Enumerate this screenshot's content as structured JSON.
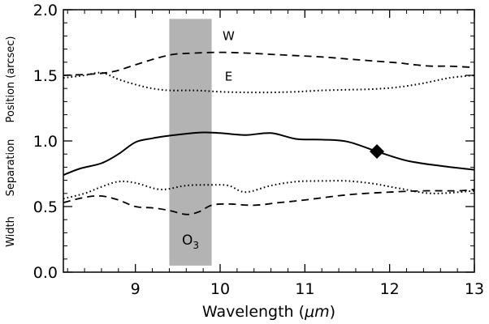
{
  "chart_data": {
    "type": "line",
    "xlabel_prefix": "Wavelength (",
    "xlabel_unit": "μm",
    "xlabel_suffix": ")",
    "ylabels": [
      "Position (arcsec)",
      "Separation",
      "Width"
    ],
    "xlim": [
      8.15,
      13.0
    ],
    "ylim": [
      0.0,
      2.0
    ],
    "x_ticks": [
      9,
      10,
      11,
      12,
      13
    ],
    "x_tick_labels": [
      "9",
      "10",
      "11",
      "12",
      "13"
    ],
    "y_ticks": [
      0.0,
      0.5,
      1.0,
      1.5,
      2.0
    ],
    "y_tick_labels": [
      "0.0",
      "0.5",
      "1.0",
      "1.5",
      "2.0"
    ],
    "grid": false,
    "band": {
      "x0": 9.4,
      "x1": 9.9,
      "y0": 0.05,
      "y1": 1.93,
      "color": "#b3b3b3",
      "label_main": "O",
      "label_sub": "3"
    },
    "series": [
      {
        "name": "W",
        "style": "dashed",
        "x": [
          8.15,
          8.5,
          8.75,
          9.0,
          9.25,
          9.45,
          9.7,
          10.0,
          10.3,
          10.6,
          10.9,
          11.2,
          11.5,
          11.8,
          12.1,
          12.3,
          12.5,
          12.7,
          13.0
        ],
        "y": [
          1.5,
          1.51,
          1.53,
          1.58,
          1.63,
          1.66,
          1.67,
          1.675,
          1.67,
          1.66,
          1.65,
          1.64,
          1.625,
          1.61,
          1.595,
          1.58,
          1.57,
          1.57,
          1.56
        ]
      },
      {
        "name": "E",
        "style": "dotted",
        "x": [
          8.15,
          8.4,
          8.6,
          8.8,
          9.0,
          9.2,
          9.4,
          9.7,
          10.0,
          10.3,
          10.6,
          10.9,
          11.2,
          11.5,
          11.8,
          12.1,
          12.4,
          12.7,
          13.0
        ],
        "y": [
          1.48,
          1.5,
          1.52,
          1.47,
          1.43,
          1.4,
          1.385,
          1.385,
          1.375,
          1.37,
          1.37,
          1.375,
          1.385,
          1.39,
          1.395,
          1.41,
          1.44,
          1.48,
          1.5
        ]
      },
      {
        "name": "Separation",
        "style": "solid",
        "x": [
          8.15,
          8.35,
          8.6,
          8.8,
          9.0,
          9.2,
          9.4,
          9.6,
          9.8,
          10.0,
          10.3,
          10.6,
          10.9,
          11.2,
          11.5,
          11.85,
          12.2,
          12.6,
          13.0
        ],
        "y": [
          0.74,
          0.79,
          0.83,
          0.9,
          0.99,
          1.02,
          1.04,
          1.055,
          1.065,
          1.06,
          1.045,
          1.06,
          1.015,
          1.01,
          0.995,
          0.92,
          0.85,
          0.81,
          0.78
        ]
      },
      {
        "name": "Width (dotted)",
        "style": "dotted",
        "x": [
          8.15,
          8.4,
          8.6,
          8.8,
          9.0,
          9.3,
          9.6,
          9.9,
          10.1,
          10.3,
          10.6,
          10.9,
          11.2,
          11.5,
          11.8,
          12.1,
          12.5,
          13.0
        ],
        "y": [
          0.56,
          0.6,
          0.65,
          0.69,
          0.68,
          0.63,
          0.66,
          0.665,
          0.66,
          0.61,
          0.66,
          0.69,
          0.695,
          0.695,
          0.675,
          0.64,
          0.6,
          0.62
        ]
      },
      {
        "name": "Width (dashed)",
        "style": "dashed",
        "x": [
          8.15,
          8.4,
          8.6,
          8.8,
          9.0,
          9.2,
          9.4,
          9.6,
          9.75,
          9.9,
          10.1,
          10.4,
          10.7,
          11.0,
          11.3,
          11.6,
          12.0,
          12.4,
          12.8,
          13.0
        ],
        "y": [
          0.53,
          0.57,
          0.58,
          0.55,
          0.5,
          0.49,
          0.47,
          0.44,
          0.46,
          0.51,
          0.52,
          0.51,
          0.53,
          0.55,
          0.575,
          0.595,
          0.61,
          0.62,
          0.62,
          0.63
        ]
      }
    ],
    "marker": {
      "shape": "diamond",
      "x": 11.85,
      "y": 0.92
    },
    "annotations": [
      {
        "text": "W",
        "x": 10.1,
        "y": 1.77
      },
      {
        "text": "E",
        "x": 10.1,
        "y": 1.46
      }
    ]
  }
}
